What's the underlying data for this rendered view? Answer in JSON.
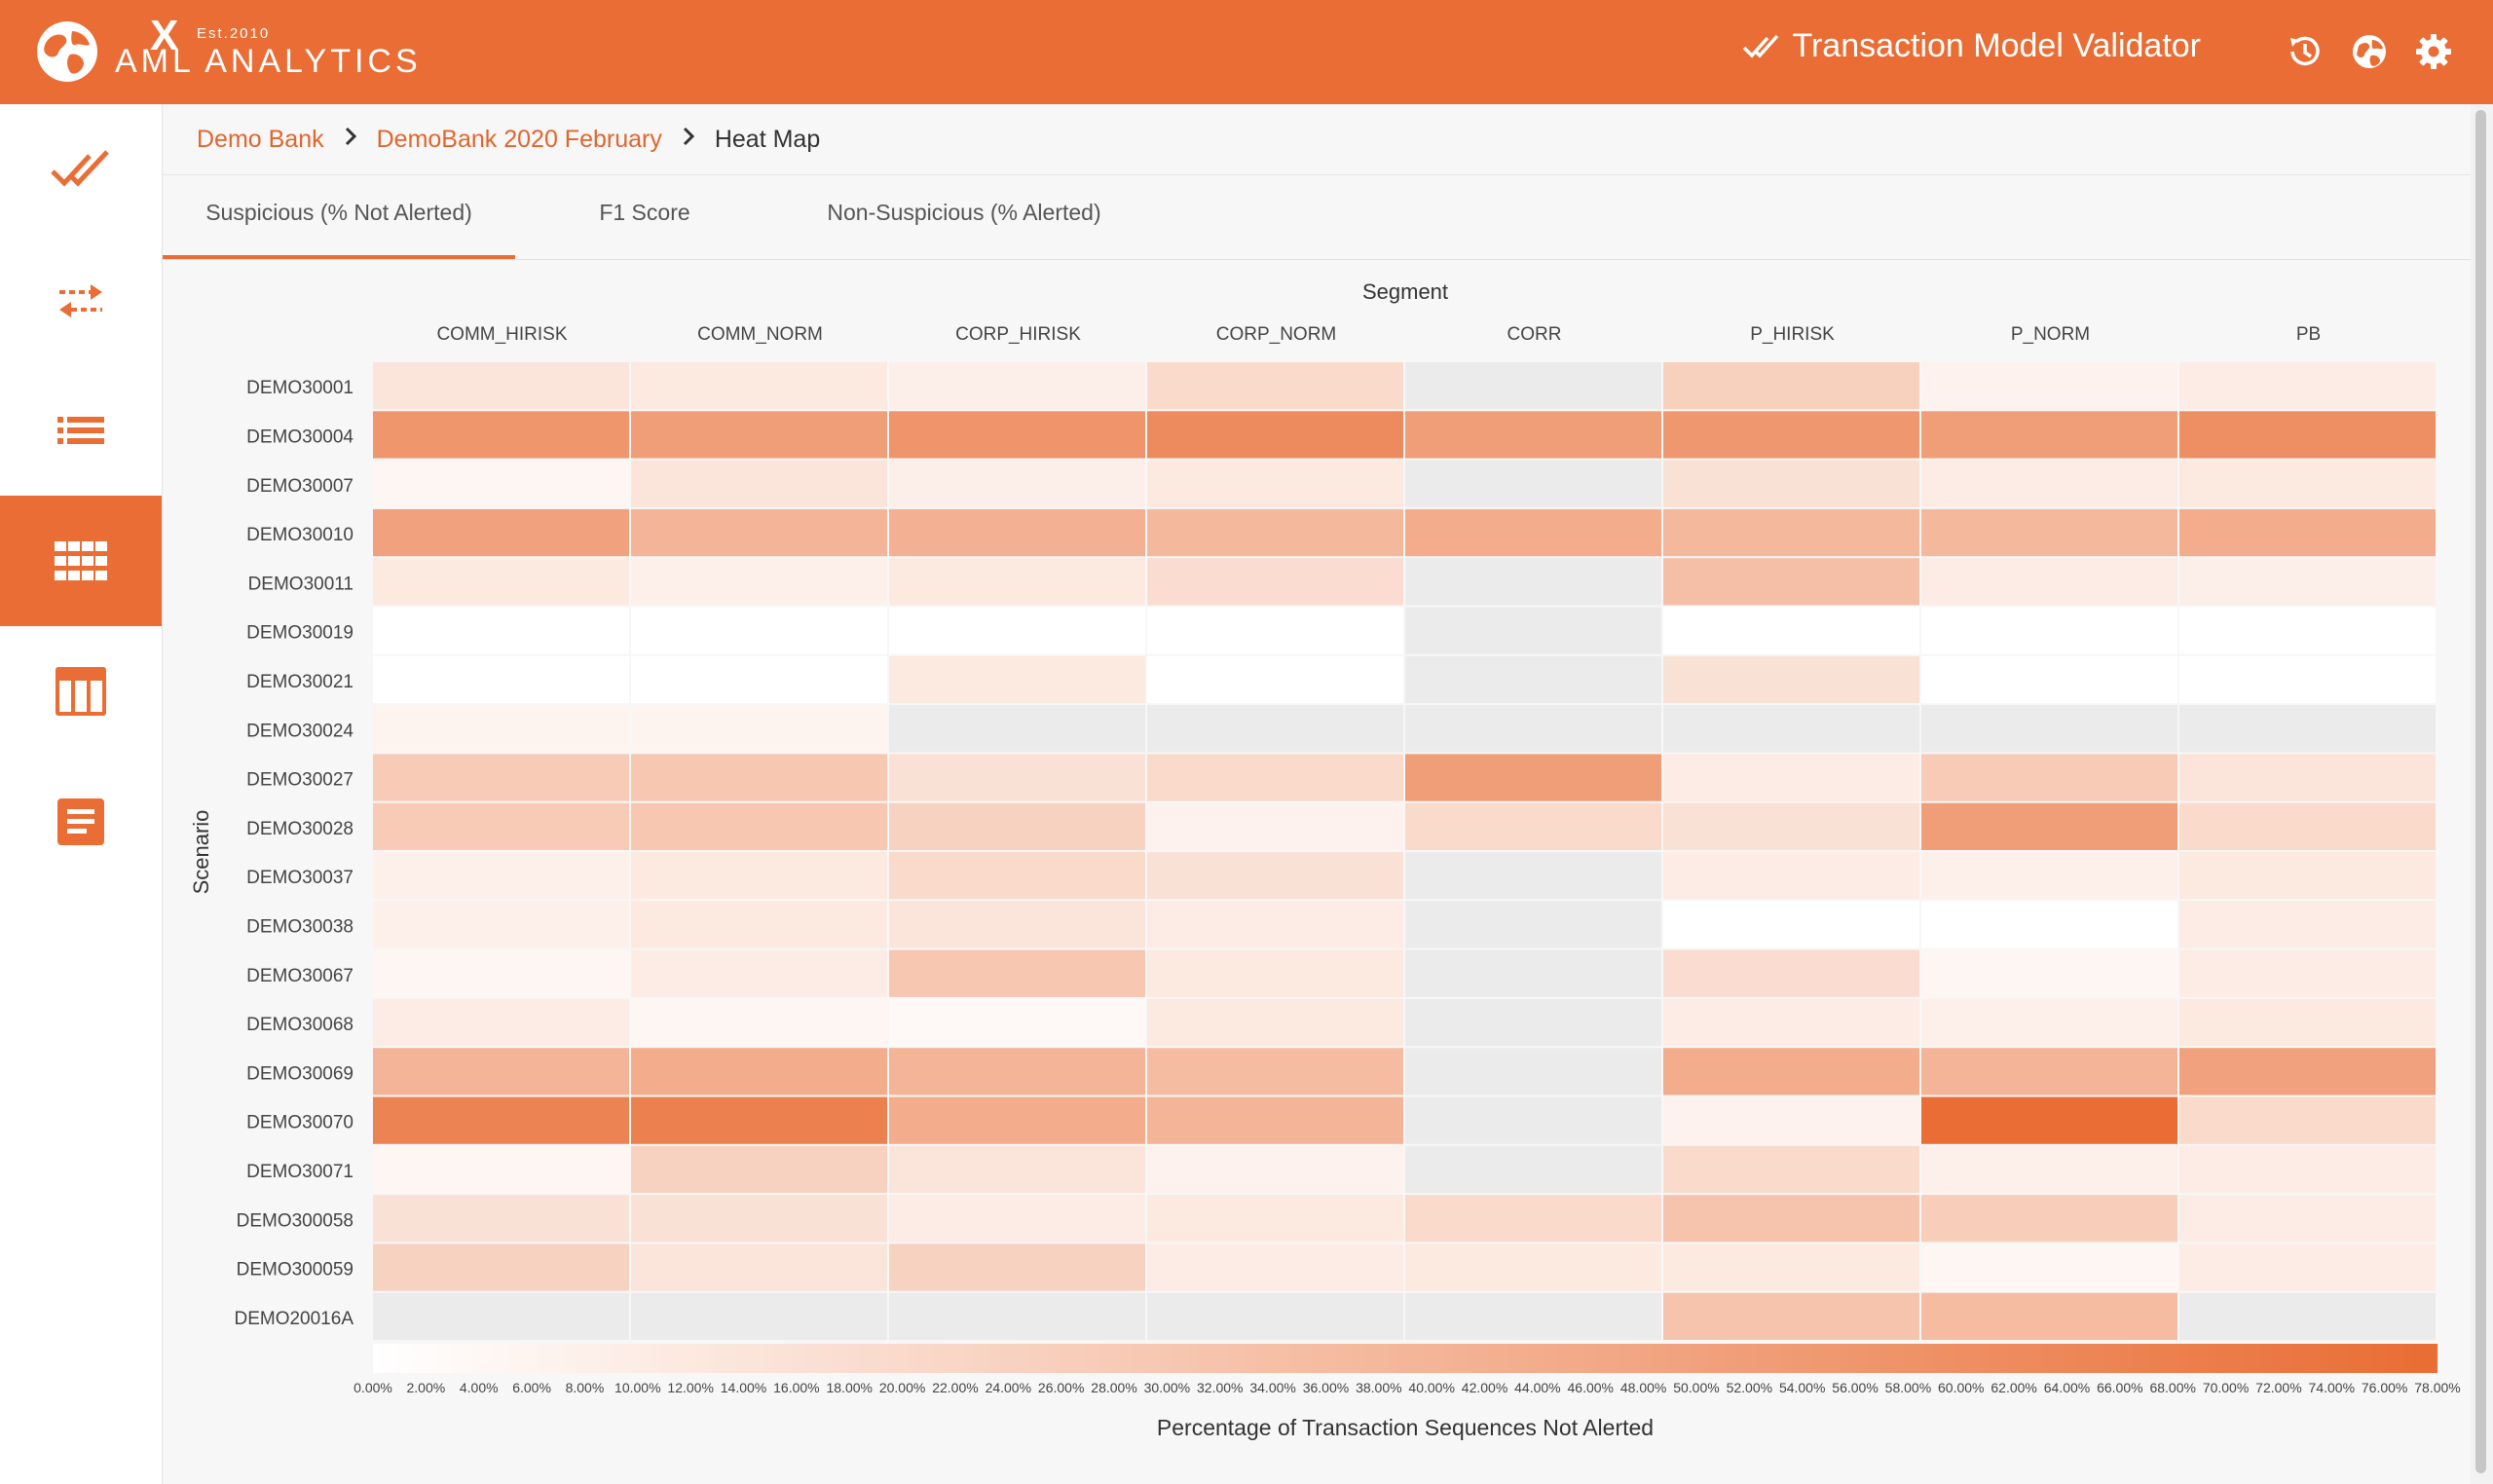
{
  "header": {
    "brand": "AML ANALYTICS",
    "est": "Est.2010",
    "logo_mark": "X",
    "app_title": "Transaction Model Validator",
    "icons": [
      "history-icon",
      "globe-icon",
      "gear-icon"
    ]
  },
  "sidebar": {
    "items": [
      {
        "icon": "double-check-icon",
        "active": false
      },
      {
        "icon": "transfer-arrows-icon",
        "active": false
      },
      {
        "icon": "list-icon",
        "active": false
      },
      {
        "icon": "grid-icon",
        "active": true
      },
      {
        "icon": "table-icon",
        "active": false
      },
      {
        "icon": "document-icon",
        "active": false
      }
    ]
  },
  "breadcrumb": [
    "Demo Bank",
    "DemoBank 2020 February",
    "Heat Map"
  ],
  "tabs": [
    {
      "label": "Suspicious (% Not Alerted)",
      "active": true
    },
    {
      "label": "F1 Score",
      "active": false
    },
    {
      "label": "Non-Suspicious (% Alerted)",
      "active": false
    }
  ],
  "colors": {
    "accent": "#e96d34",
    "low": "#ffffff",
    "na": "#ebebeb"
  },
  "chart_data": {
    "type": "heatmap",
    "title": "Segment",
    "xlabel": "",
    "ylabel": "Scenario",
    "colorbar_label": "Percentage of Transaction Sequences Not Alerted",
    "columns": [
      "COMM_HIRISK",
      "COMM_NORM",
      "CORP_HIRISK",
      "CORP_NORM",
      "CORR",
      "P_HIRISK",
      "P_NORM",
      "PB"
    ],
    "rows": [
      "DEMO30001",
      "DEMO30004",
      "DEMO30007",
      "DEMO30010",
      "DEMO30011",
      "DEMO30019",
      "DEMO30021",
      "DEMO30024",
      "DEMO30027",
      "DEMO30028",
      "DEMO30037",
      "DEMO30038",
      "DEMO30067",
      "DEMO30068",
      "DEMO30069",
      "DEMO30070",
      "DEMO30071",
      "DEMO300058",
      "DEMO300059",
      "DEMO20016A"
    ],
    "values": [
      [
        14,
        12,
        9,
        20,
        null,
        25,
        7,
        10
      ],
      [
        56,
        52,
        57,
        62,
        52,
        55,
        52,
        60
      ],
      [
        5,
        14,
        9,
        12,
        null,
        16,
        10,
        12
      ],
      [
        50,
        40,
        42,
        38,
        44,
        38,
        38,
        44
      ],
      [
        12,
        8,
        12,
        18,
        null,
        34,
        10,
        9
      ],
      [
        0,
        0,
        0,
        0,
        null,
        0,
        0,
        0
      ],
      [
        0,
        0,
        12,
        0,
        null,
        16,
        0,
        0
      ],
      [
        6,
        6,
        null,
        null,
        null,
        null,
        null,
        null
      ],
      [
        28,
        30,
        16,
        20,
        52,
        10,
        28,
        14
      ],
      [
        28,
        30,
        24,
        7,
        20,
        16,
        52,
        20
      ],
      [
        8,
        12,
        20,
        16,
        null,
        10,
        8,
        12
      ],
      [
        8,
        12,
        14,
        10,
        null,
        0,
        0,
        10
      ],
      [
        5,
        10,
        30,
        12,
        null,
        18,
        5,
        10
      ],
      [
        10,
        5,
        3,
        12,
        null,
        10,
        8,
        12
      ],
      [
        40,
        44,
        40,
        36,
        null,
        44,
        40,
        50
      ],
      [
        66,
        68,
        44,
        40,
        null,
        7,
        78,
        20
      ],
      [
        5,
        24,
        14,
        7,
        null,
        20,
        8,
        10
      ],
      [
        16,
        16,
        10,
        12,
        20,
        32,
        26,
        10
      ],
      [
        24,
        14,
        24,
        10,
        12,
        12,
        5,
        10
      ],
      [
        null,
        null,
        null,
        null,
        null,
        32,
        36,
        null
      ]
    ],
    "colorbar_range": [
      0,
      78
    ],
    "colorbar_ticks": [
      "0.00%",
      "2.00%",
      "4.00%",
      "6.00%",
      "8.00%",
      "10.00%",
      "12.00%",
      "14.00%",
      "16.00%",
      "18.00%",
      "20.00%",
      "22.00%",
      "24.00%",
      "26.00%",
      "28.00%",
      "30.00%",
      "32.00%",
      "34.00%",
      "36.00%",
      "38.00%",
      "40.00%",
      "42.00%",
      "44.00%",
      "46.00%",
      "48.00%",
      "50.00%",
      "52.00%",
      "54.00%",
      "56.00%",
      "58.00%",
      "60.00%",
      "62.00%",
      "64.00%",
      "66.00%",
      "68.00%",
      "70.00%",
      "72.00%",
      "74.00%",
      "76.00%",
      "78.00%"
    ]
  }
}
